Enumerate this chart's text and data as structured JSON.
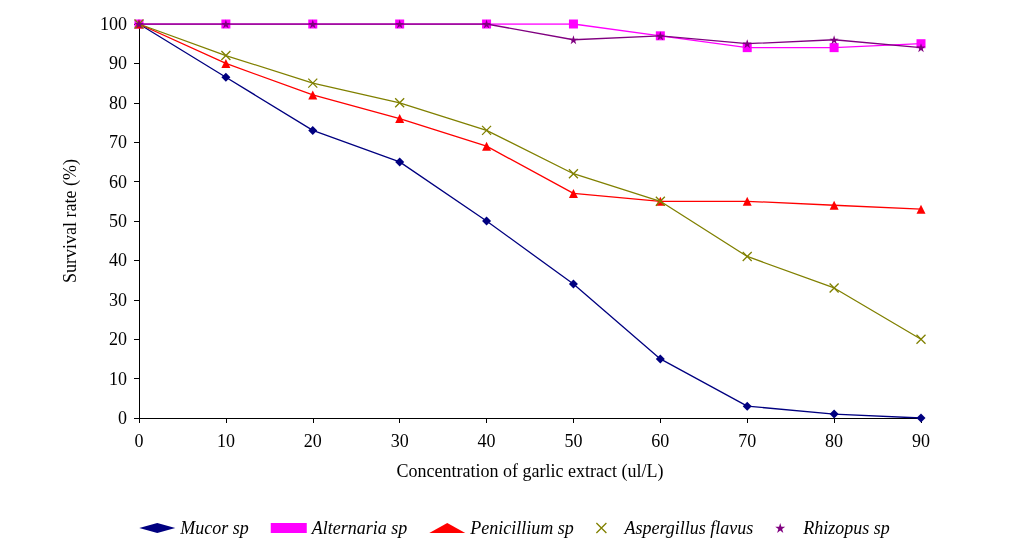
{
  "chart_data": {
    "type": "line",
    "xlabel": "Concentration of garlic extract (ul/L)",
    "ylabel": "Survival rate (%)",
    "x": [
      0,
      10,
      20,
      30,
      40,
      50,
      60,
      70,
      80,
      90
    ],
    "series": [
      {
        "name": "Mucor sp",
        "color": "#000080",
        "marker": "diamond",
        "values": [
          100,
          86.5,
          73,
          65,
          50,
          34,
          15,
          3,
          1,
          0
        ]
      },
      {
        "name": "Alternaria sp",
        "color": "#ff00ff",
        "marker": "square",
        "values": [
          100,
          100,
          100,
          100,
          100,
          100,
          97,
          94,
          94,
          95
        ]
      },
      {
        "name": "Penicillium sp",
        "color": "#ff0000",
        "marker": "triangle",
        "values": [
          100,
          90,
          82,
          76,
          69,
          57,
          55,
          55,
          54,
          53
        ]
      },
      {
        "name": "Aspergillus flavus",
        "color": "#808000",
        "marker": "cross",
        "values": [
          100,
          92,
          85,
          80,
          73,
          62,
          55,
          41,
          33,
          20
        ]
      },
      {
        "name": "Rhizopus sp",
        "color": "#800080",
        "marker": "star",
        "values": [
          100,
          100,
          100,
          100,
          100,
          96,
          97,
          95,
          96,
          94
        ]
      }
    ],
    "xlim": [
      0,
      90
    ],
    "xticks": [
      0,
      10,
      20,
      30,
      40,
      50,
      60,
      70,
      80,
      90
    ],
    "ylim": [
      0,
      100
    ],
    "yticks": [
      0,
      10,
      20,
      30,
      40,
      50,
      60,
      70,
      80,
      90,
      100
    ],
    "grid": false,
    "legend": "bottom",
    "line_style": "solid"
  }
}
